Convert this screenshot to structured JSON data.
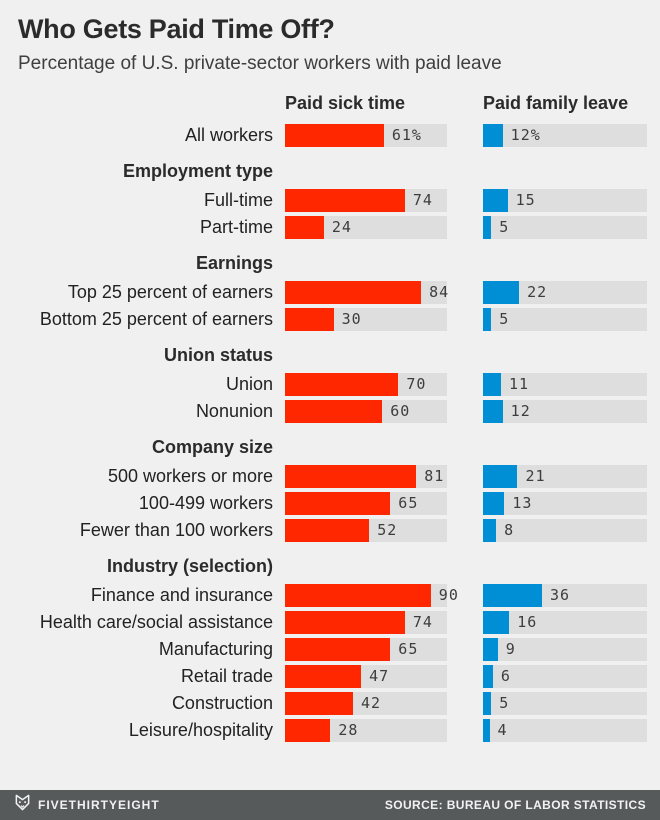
{
  "title": "Who Gets Paid Time Off?",
  "subtitle": "Percentage of U.S. private-sector workers with paid leave",
  "colors": {
    "background": "#f0f0f0",
    "track": "#dedede",
    "sick_bar": "#ff2700",
    "family_bar": "#008fd5",
    "footer_bar": "#565a5b"
  },
  "chart_data": {
    "type": "bar",
    "orientation": "horizontal",
    "value_range": [
      0,
      100
    ],
    "unit": "percent",
    "grid": false,
    "series_names": [
      "Paid sick time",
      "Paid family leave"
    ],
    "series_colors": [
      "#ff2700",
      "#008fd5"
    ],
    "groups": [
      {
        "header": "",
        "rows": [
          {
            "label": "All workers",
            "values": [
              61,
              12
            ],
            "value_labels": [
              "61%",
              "12%"
            ]
          }
        ]
      },
      {
        "header": "Employment type",
        "rows": [
          {
            "label": "Full-time",
            "values": [
              74,
              15
            ],
            "value_labels": [
              "74",
              "15"
            ]
          },
          {
            "label": "Part-time",
            "values": [
              24,
              5
            ],
            "value_labels": [
              "24",
              "5"
            ]
          }
        ]
      },
      {
        "header": "Earnings",
        "rows": [
          {
            "label": "Top 25 percent of earners",
            "values": [
              84,
              22
            ],
            "value_labels": [
              "84",
              "22"
            ]
          },
          {
            "label": "Bottom 25 percent of earners",
            "values": [
              30,
              5
            ],
            "value_labels": [
              "30",
              "5"
            ]
          }
        ]
      },
      {
        "header": "Union status",
        "rows": [
          {
            "label": "Union",
            "values": [
              70,
              11
            ],
            "value_labels": [
              "70",
              "11"
            ]
          },
          {
            "label": "Nonunion",
            "values": [
              60,
              12
            ],
            "value_labels": [
              "60",
              "12"
            ]
          }
        ]
      },
      {
        "header": "Company size",
        "rows": [
          {
            "label": "500 workers or more",
            "values": [
              81,
              21
            ],
            "value_labels": [
              "81",
              "21"
            ]
          },
          {
            "label": "100-499 workers",
            "values": [
              65,
              13
            ],
            "value_labels": [
              "65",
              "13"
            ]
          },
          {
            "label": "Fewer than 100 workers",
            "values": [
              52,
              8
            ],
            "value_labels": [
              "52",
              "8"
            ]
          }
        ]
      },
      {
        "header": "Industry (selection)",
        "rows": [
          {
            "label": "Finance and insurance",
            "values": [
              90,
              36
            ],
            "value_labels": [
              "90",
              "36"
            ]
          },
          {
            "label": "Health care/social assistance",
            "values": [
              74,
              16
            ],
            "value_labels": [
              "74",
              "16"
            ]
          },
          {
            "label": "Manufacturing",
            "values": [
              65,
              9
            ],
            "value_labels": [
              "65",
              "9"
            ]
          },
          {
            "label": "Retail trade",
            "values": [
              47,
              6
            ],
            "value_labels": [
              "47",
              "6"
            ]
          },
          {
            "label": "Construction",
            "values": [
              42,
              5
            ],
            "value_labels": [
              "42",
              "5"
            ]
          },
          {
            "label": "Leisure/hospitality",
            "values": [
              28,
              4
            ],
            "value_labels": [
              "28",
              "4"
            ]
          }
        ]
      }
    ]
  },
  "footer": {
    "brand": "FIVETHIRTYEIGHT",
    "source": "SOURCE: BUREAU OF LABOR STATISTICS"
  }
}
